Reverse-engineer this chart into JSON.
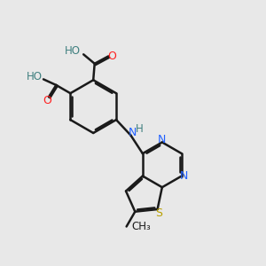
{
  "bg_color": "#e8e8e8",
  "bond_color": "#1a1a1a",
  "bond_width": 1.8,
  "N_color": "#2060ff",
  "O_color": "#ff2020",
  "S_color": "#b8a000",
  "H_color": "#408080",
  "C_color": "#1a1a1a",
  "figsize": [
    3.0,
    3.0
  ],
  "dpi": 100,
  "xlim": [
    0.0,
    10.0
  ],
  "ylim": [
    0.5,
    10.5
  ]
}
